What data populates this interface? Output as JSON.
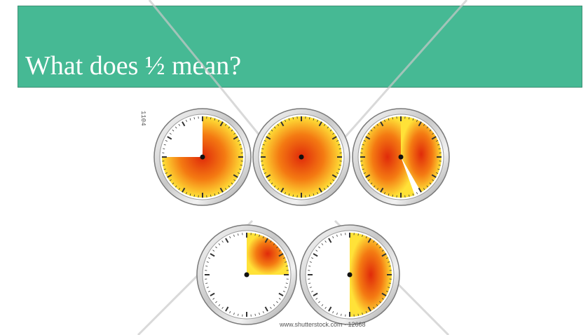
{
  "slide": {
    "title": "What does ½ mean?",
    "background_color": "#ffffff",
    "title_band_color": "#46b994",
    "title_text_color": "#ffffff"
  },
  "image": {
    "credit": "www.shutterstock.com · 12668",
    "side_code": "1104",
    "clocks": [
      {
        "name": "clock-three-quarters",
        "shaded": "three-quarters"
      },
      {
        "name": "clock-full",
        "shaded": "full"
      },
      {
        "name": "clock-almost-full",
        "shaded": "almost full"
      },
      {
        "name": "clock-one-quarter",
        "shaded": "one quarter"
      },
      {
        "name": "clock-one-half",
        "shaded": "one half"
      }
    ],
    "shade_colors": {
      "inner": "#e02b0a",
      "middle": "#f47a12",
      "outer": "#ffe238"
    }
  }
}
